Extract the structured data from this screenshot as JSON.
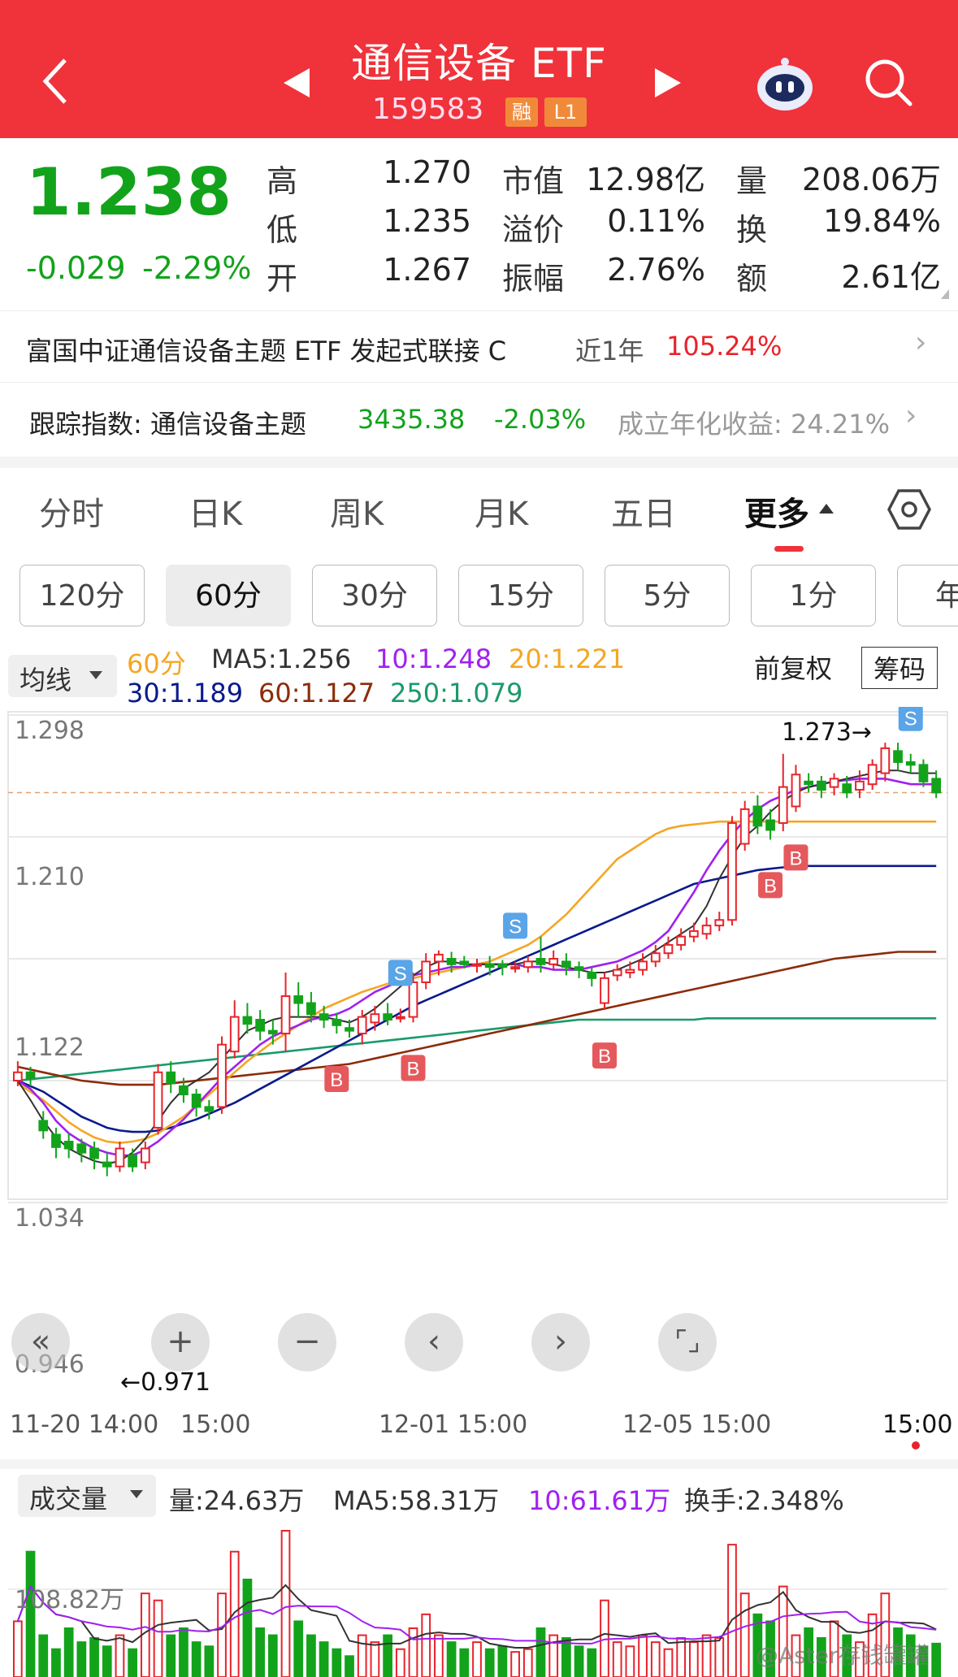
{
  "header": {
    "title": "通信设备 ETF",
    "code": "159583",
    "tag1": "融",
    "tag2": "L1"
  },
  "quote": {
    "price": "1.238",
    "change": "-0.029",
    "change_pct": "-2.29%",
    "labels": [
      "高",
      "低",
      "开",
      "市值",
      "溢价",
      "振幅",
      "量",
      "换",
      "额"
    ],
    "high": "1.270",
    "low": "1.235",
    "open": "1.267",
    "market_cap": "12.98亿",
    "premium": "0.11%",
    "amplitude": "2.76%",
    "volume": "208.06万",
    "turnover": "19.84%",
    "amount": "2.61亿"
  },
  "linked_fund": {
    "name": "富国中证通信设备主题 ETF 发起式联接 C",
    "period_label": "近1年",
    "return": "105.24%"
  },
  "tracking": {
    "label": "跟踪指数: 通信设备主题",
    "value": "3435.38",
    "change": "-2.03%",
    "annual": "成立年化收益: 24.21%"
  },
  "tabs": [
    "分时",
    "日K",
    "周K",
    "月K",
    "五日",
    "更多"
  ],
  "period_buttons": [
    "120分",
    "60分",
    "30分",
    "15分",
    "5分",
    "1分",
    "年"
  ],
  "indicator": {
    "selector": "均线",
    "period": "60分",
    "ma5": "MA5:1.256",
    "ma10": "10:1.248",
    "ma20": "20:1.221",
    "ma30": "30:1.189",
    "ma60": "60:1.127",
    "ma250": "250:1.079",
    "adjust": "前复权",
    "chips": "筹码"
  },
  "price_axis": [
    "1.298",
    "1.210",
    "1.122",
    "1.034",
    "0.946"
  ],
  "annotations": {
    "high_label": "1.273→",
    "low_label": "←0.971"
  },
  "time_axis": [
    "11-20 14:00",
    "15:00",
    "12-01 15:00",
    "12-05 15:00",
    "15:00"
  ],
  "volume_panel": {
    "selector": "成交量",
    "vol": "量:24.63万",
    "ma5": "MA5:58.31万",
    "ma10": "10:61.61万",
    "turnover": "换手:2.348%",
    "axis_label": "108.82万"
  },
  "watermark": "@Aster存钱罐罐",
  "colors": {
    "header_red": "#f0323a",
    "up_red": "#e8232b",
    "down_green": "#12a31b",
    "ma5": "#333333",
    "ma10": "#a020f0",
    "ma20": "#f5a623",
    "ma30": "#0a1a8c",
    "ma60": "#8b2c0a",
    "ma250": "#1a9a6a"
  },
  "chart_data": {
    "type": "candlestick",
    "period": "60分",
    "ylim": [
      0.946,
      1.298
    ],
    "candles": [
      [
        1.034,
        1.04,
        1.048,
        1.03
      ],
      [
        1.04,
        1.036,
        1.044,
        1.03
      ],
      [
        1.005,
        0.998,
        1.012,
        0.992
      ],
      [
        0.995,
        0.986,
        1.0,
        0.978
      ],
      [
        0.99,
        0.985,
        0.996,
        0.978
      ],
      [
        0.988,
        0.982,
        0.992,
        0.975
      ],
      [
        0.985,
        0.978,
        0.99,
        0.97
      ],
      [
        0.975,
        0.972,
        0.982,
        0.965
      ],
      [
        0.972,
        0.985,
        0.99,
        0.968
      ],
      [
        0.98,
        0.972,
        0.985,
        0.968
      ],
      [
        0.975,
        0.985,
        0.99,
        0.97
      ],
      [
        1.0,
        1.04,
        1.046,
        0.995
      ],
      [
        1.04,
        1.032,
        1.048,
        1.025
      ],
      [
        1.03,
        1.024,
        1.036,
        1.018
      ],
      [
        1.024,
        1.015,
        1.028,
        1.008
      ],
      [
        1.015,
        1.012,
        1.02,
        1.006
      ],
      [
        1.015,
        1.06,
        1.066,
        1.01
      ],
      [
        1.055,
        1.08,
        1.092,
        1.05
      ],
      [
        1.08,
        1.075,
        1.09,
        1.068
      ],
      [
        1.078,
        1.07,
        1.085,
        1.063
      ],
      [
        1.07,
        1.068,
        1.078,
        1.06
      ],
      [
        1.068,
        1.095,
        1.112,
        1.055
      ],
      [
        1.095,
        1.09,
        1.105,
        1.08
      ],
      [
        1.09,
        1.082,
        1.098,
        1.076
      ],
      [
        1.082,
        1.078,
        1.088,
        1.072
      ],
      [
        1.078,
        1.074,
        1.083,
        1.068
      ],
      [
        1.072,
        1.07,
        1.078,
        1.065
      ],
      [
        1.068,
        1.08,
        1.085,
        1.06
      ],
      [
        1.076,
        1.082,
        1.088,
        1.07
      ],
      [
        1.082,
        1.078,
        1.09,
        1.074
      ],
      [
        1.08,
        1.08,
        1.086,
        1.076
      ],
      [
        1.08,
        1.105,
        1.112,
        1.076
      ],
      [
        1.105,
        1.12,
        1.126,
        1.1
      ],
      [
        1.12,
        1.125,
        1.128,
        1.11
      ],
      [
        1.122,
        1.118,
        1.127,
        1.112
      ],
      [
        1.12,
        1.118,
        1.124,
        1.115
      ],
      [
        1.118,
        1.118,
        1.122,
        1.112
      ],
      [
        1.118,
        1.116,
        1.124,
        1.11
      ],
      [
        1.118,
        1.116,
        1.121,
        1.11
      ],
      [
        1.116,
        1.116,
        1.12,
        1.112
      ],
      [
        1.116,
        1.12,
        1.124,
        1.112
      ],
      [
        1.122,
        1.118,
        1.138,
        1.112
      ],
      [
        1.118,
        1.122,
        1.128,
        1.114
      ],
      [
        1.12,
        1.116,
        1.126,
        1.11
      ],
      [
        1.116,
        1.114,
        1.12,
        1.108
      ],
      [
        1.112,
        1.108,
        1.116,
        1.102
      ],
      [
        1.09,
        1.108,
        1.112,
        1.085
      ],
      [
        1.11,
        1.114,
        1.118,
        1.106
      ],
      [
        1.112,
        1.114,
        1.12,
        1.108
      ],
      [
        1.114,
        1.12,
        1.126,
        1.11
      ],
      [
        1.12,
        1.126,
        1.132,
        1.116
      ],
      [
        1.126,
        1.132,
        1.138,
        1.122
      ],
      [
        1.132,
        1.138,
        1.144,
        1.128
      ],
      [
        1.138,
        1.142,
        1.148,
        1.134
      ],
      [
        1.14,
        1.146,
        1.152,
        1.136
      ],
      [
        1.146,
        1.15,
        1.156,
        1.142
      ],
      [
        1.15,
        1.22,
        1.225,
        1.146
      ],
      [
        1.205,
        1.23,
        1.236,
        1.2
      ],
      [
        1.232,
        1.218,
        1.24,
        1.212
      ],
      [
        1.222,
        1.215,
        1.23,
        1.208
      ],
      [
        1.22,
        1.246,
        1.27,
        1.214
      ],
      [
        1.232,
        1.255,
        1.262,
        1.228
      ],
      [
        1.25,
        1.248,
        1.256,
        1.242
      ],
      [
        1.25,
        1.244,
        1.254,
        1.238
      ],
      [
        1.246,
        1.252,
        1.256,
        1.24
      ],
      [
        1.248,
        1.242,
        1.254,
        1.238
      ],
      [
        1.244,
        1.25,
        1.258,
        1.238
      ],
      [
        1.248,
        1.262,
        1.266,
        1.244
      ],
      [
        1.256,
        1.274,
        1.278,
        1.25
      ],
      [
        1.272,
        1.264,
        1.278,
        1.258
      ],
      [
        1.264,
        1.262,
        1.27,
        1.256
      ],
      [
        1.262,
        1.25,
        1.266,
        1.246
      ],
      [
        1.252,
        1.242,
        1.258,
        1.238
      ]
    ],
    "ma5": [
      1.034,
      1.02,
      1.005,
      0.993,
      0.985,
      0.98,
      0.976,
      0.974,
      0.976,
      0.982,
      0.992,
      1.005,
      1.018,
      1.028,
      1.034,
      1.04,
      1.05,
      1.06,
      1.07,
      1.074,
      1.078,
      1.08,
      1.08,
      1.08,
      1.08,
      1.078,
      1.076,
      1.08,
      1.086,
      1.094,
      1.102,
      1.11,
      1.116,
      1.12,
      1.12,
      1.118,
      1.118,
      1.118,
      1.118,
      1.118,
      1.12,
      1.12,
      1.118,
      1.116,
      1.114,
      1.112,
      1.112,
      1.114,
      1.118,
      1.122,
      1.128,
      1.134,
      1.14,
      1.146,
      1.16,
      1.18,
      1.196,
      1.21,
      1.218,
      1.228,
      1.236,
      1.242,
      1.246,
      1.248,
      1.25,
      1.252,
      1.254,
      1.256,
      1.258,
      1.258,
      1.256,
      1.256,
      1.256
    ],
    "ma10": [
      1.034,
      1.028,
      1.018,
      1.005,
      0.996,
      0.99,
      0.985,
      0.982,
      0.98,
      0.98,
      0.984,
      0.99,
      0.998,
      1.006,
      1.016,
      1.026,
      1.036,
      1.044,
      1.052,
      1.06,
      1.066,
      1.07,
      1.074,
      1.078,
      1.08,
      1.082,
      1.086,
      1.092,
      1.098,
      1.102,
      1.106,
      1.11,
      1.112,
      1.114,
      1.116,
      1.116,
      1.118,
      1.118,
      1.118,
      1.118,
      1.116,
      1.116,
      1.114,
      1.114,
      1.114,
      1.116,
      1.118,
      1.12,
      1.124,
      1.128,
      1.134,
      1.142,
      1.156,
      1.17,
      1.186,
      1.2,
      1.212,
      1.222,
      1.23,
      1.236,
      1.24,
      1.244,
      1.246,
      1.248,
      1.25,
      1.251,
      1.252,
      1.252,
      1.252,
      1.25,
      1.248,
      1.248,
      1.248
    ],
    "ma20": [
      1.032,
      1.026,
      1.02,
      1.012,
      1.004,
      0.998,
      0.993,
      0.99,
      0.989,
      0.99,
      0.992,
      0.996,
      1.002,
      1.008,
      1.016,
      1.024,
      1.032,
      1.04,
      1.048,
      1.055,
      1.062,
      1.068,
      1.074,
      1.08,
      1.086,
      1.09,
      1.094,
      1.098,
      1.101,
      1.104,
      1.106,
      1.108,
      1.11,
      1.112,
      1.114,
      1.116,
      1.118,
      1.12,
      1.124,
      1.128,
      1.132,
      1.138,
      1.146,
      1.154,
      1.164,
      1.174,
      1.184,
      1.194,
      1.2,
      1.206,
      1.212,
      1.216,
      1.218,
      1.219,
      1.22,
      1.221,
      1.221,
      1.221,
      1.221,
      1.221,
      1.221,
      1.221,
      1.221,
      1.221,
      1.221,
      1.221,
      1.221,
      1.221,
      1.221,
      1.221,
      1.221,
      1.221,
      1.221
    ],
    "ma30": [
      1.034,
      1.03,
      1.026,
      1.02,
      1.014,
      1.008,
      1.004,
      1.0,
      0.998,
      0.997,
      0.997,
      0.998,
      1.0,
      1.003,
      1.006,
      1.01,
      1.014,
      1.018,
      1.023,
      1.028,
      1.033,
      1.038,
      1.043,
      1.048,
      1.053,
      1.058,
      1.063,
      1.068,
      1.073,
      1.078,
      1.083,
      1.088,
      1.092,
      1.096,
      1.1,
      1.104,
      1.108,
      1.112,
      1.116,
      1.12,
      1.124,
      1.128,
      1.132,
      1.136,
      1.14,
      1.144,
      1.148,
      1.152,
      1.156,
      1.16,
      1.164,
      1.168,
      1.172,
      1.176,
      1.178,
      1.18,
      1.182,
      1.184,
      1.186,
      1.187,
      1.188,
      1.189,
      1.189,
      1.189,
      1.189,
      1.189,
      1.189,
      1.189,
      1.189,
      1.189,
      1.189,
      1.189,
      1.189
    ],
    "ma60": [
      1.044,
      1.042,
      1.04,
      1.038,
      1.036,
      1.034,
      1.033,
      1.032,
      1.031,
      1.031,
      1.031,
      1.031,
      1.032,
      1.033,
      1.034,
      1.035,
      1.036,
      1.037,
      1.038,
      1.039,
      1.04,
      1.041,
      1.042,
      1.043,
      1.044,
      1.045,
      1.046,
      1.048,
      1.05,
      1.052,
      1.054,
      1.056,
      1.058,
      1.06,
      1.062,
      1.064,
      1.066,
      1.068,
      1.07,
      1.072,
      1.074,
      1.076,
      1.078,
      1.08,
      1.082,
      1.084,
      1.086,
      1.088,
      1.09,
      1.092,
      1.094,
      1.096,
      1.098,
      1.1,
      1.102,
      1.104,
      1.106,
      1.108,
      1.11,
      1.112,
      1.114,
      1.116,
      1.118,
      1.12,
      1.122,
      1.123,
      1.124,
      1.125,
      1.126,
      1.127,
      1.127,
      1.127,
      1.127
    ],
    "ma250": [
      1.034,
      1.035,
      1.036,
      1.037,
      1.038,
      1.039,
      1.04,
      1.041,
      1.042,
      1.043,
      1.044,
      1.045,
      1.046,
      1.047,
      1.048,
      1.049,
      1.05,
      1.051,
      1.052,
      1.053,
      1.054,
      1.055,
      1.056,
      1.057,
      1.058,
      1.059,
      1.06,
      1.061,
      1.062,
      1.063,
      1.064,
      1.065,
      1.066,
      1.067,
      1.068,
      1.069,
      1.07,
      1.071,
      1.072,
      1.073,
      1.074,
      1.075,
      1.076,
      1.077,
      1.078,
      1.078,
      1.078,
      1.078,
      1.078,
      1.078,
      1.078,
      1.078,
      1.078,
      1.078,
      1.079,
      1.079,
      1.079,
      1.079,
      1.079,
      1.079,
      1.079,
      1.079,
      1.079,
      1.079,
      1.079,
      1.079,
      1.079,
      1.079,
      1.079,
      1.079,
      1.079,
      1.079,
      1.079
    ],
    "volume_axis_max": "108.82万",
    "volumes": [
      40,
      90,
      30,
      20,
      35,
      25,
      28,
      22,
      30,
      20,
      60,
      55,
      30,
      35,
      25,
      22,
      60,
      90,
      70,
      35,
      30,
      105,
      40,
      30,
      25,
      20,
      15,
      30,
      25,
      30,
      20,
      35,
      45,
      30,
      25,
      20,
      25,
      20,
      22,
      18,
      20,
      35,
      30,
      28,
      22,
      20,
      55,
      25,
      22,
      30,
      25,
      20,
      28,
      25,
      30,
      28,
      95,
      60,
      45,
      40,
      65,
      30,
      35,
      28,
      40,
      30,
      25,
      45,
      60,
      35,
      30,
      22,
      24
    ]
  }
}
